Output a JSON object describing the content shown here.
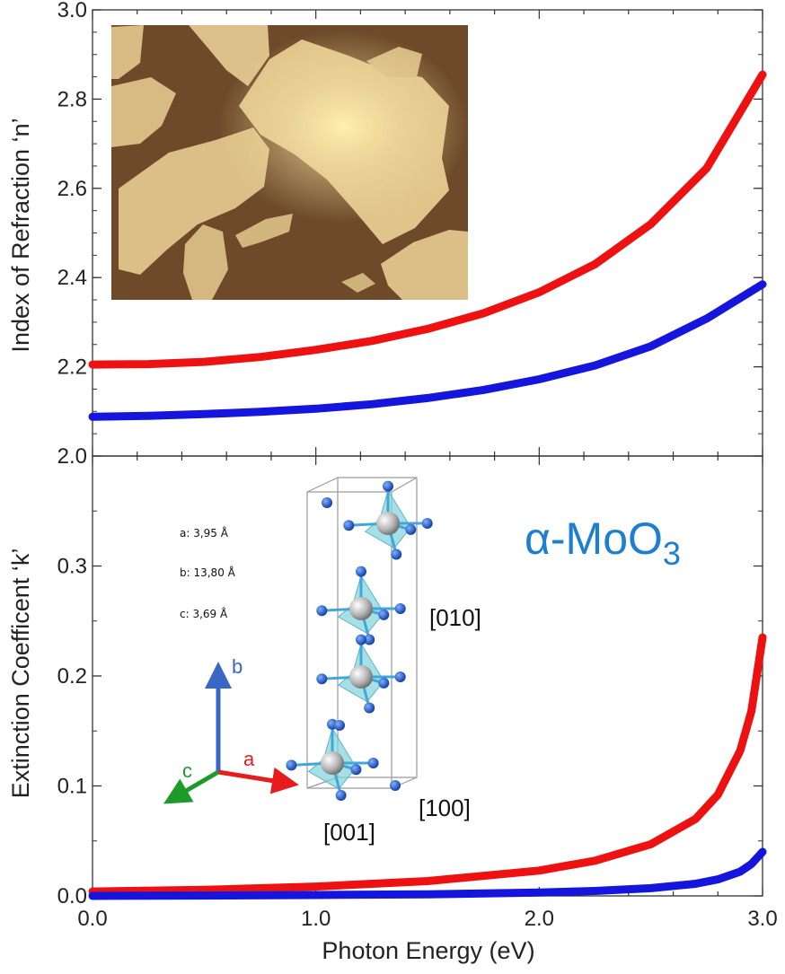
{
  "chart_data": [
    {
      "type": "line",
      "panel": "top",
      "xlabel": "",
      "ylabel": "Index of Refraction ‘n’",
      "xlim": [
        0.0,
        3.0
      ],
      "ylim": [
        2.0,
        3.0
      ],
      "yticks": [
        "2.0",
        "2.2",
        "2.4",
        "2.6",
        "2.8",
        "3.0"
      ],
      "grid": false,
      "series": [
        {
          "color": "#ee1111",
          "x": [
            0.0,
            0.25,
            0.5,
            0.75,
            1.0,
            1.25,
            1.5,
            1.75,
            2.0,
            2.25,
            2.5,
            2.75,
            3.0
          ],
          "y": [
            2.205,
            2.206,
            2.211,
            2.222,
            2.238,
            2.258,
            2.285,
            2.32,
            2.367,
            2.43,
            2.52,
            2.645,
            2.855
          ]
        },
        {
          "color": "#1515dd",
          "x": [
            0.0,
            0.25,
            0.5,
            0.75,
            1.0,
            1.25,
            1.5,
            1.75,
            2.0,
            2.25,
            2.5,
            2.75,
            3.0
          ],
          "y": [
            2.088,
            2.09,
            2.094,
            2.099,
            2.106,
            2.116,
            2.13,
            2.148,
            2.172,
            2.203,
            2.246,
            2.308,
            2.385
          ]
        }
      ]
    },
    {
      "type": "line",
      "panel": "bottom",
      "xlabel": "Photon Energy (eV)",
      "ylabel": "Extinction Coefficent ‘k’",
      "xlim": [
        0.0,
        3.0
      ],
      "ylim": [
        0.0,
        0.4
      ],
      "xticks": [
        "0.0",
        "1.0",
        "2.0",
        "3.0"
      ],
      "yticks": [
        "0.0",
        "0.1",
        "0.2",
        "0.3"
      ],
      "grid": false,
      "series": [
        {
          "color": "#ee1111",
          "x": [
            0.0,
            0.5,
            1.0,
            1.5,
            2.0,
            2.25,
            2.5,
            2.7,
            2.8,
            2.9,
            2.95,
            3.0
          ],
          "y": [
            0.004,
            0.0055,
            0.0085,
            0.0135,
            0.023,
            0.032,
            0.047,
            0.07,
            0.092,
            0.132,
            0.168,
            0.235
          ]
        },
        {
          "color": "#1515dd",
          "x": [
            0.0,
            0.5,
            1.0,
            1.5,
            2.0,
            2.25,
            2.5,
            2.7,
            2.8,
            2.9,
            2.95,
            3.0
          ],
          "y": [
            0.0,
            0.0003,
            0.0008,
            0.0015,
            0.003,
            0.0045,
            0.007,
            0.011,
            0.015,
            0.022,
            0.029,
            0.04
          ]
        }
      ]
    }
  ],
  "annotations": {
    "formula_main": "α-MoO",
    "formula_sub": "3",
    "lattice": [
      "a: 3,95 Å",
      "b: 13,80 Å",
      "c: 3,69 Å"
    ],
    "directions": {
      "d010": "[010]",
      "d100": "[100]",
      "d001": "[001]"
    },
    "axes": {
      "a": "a",
      "b": "b",
      "c": "c"
    }
  },
  "colors": {
    "red_series": "#ee1111",
    "blue_series": "#1515dd",
    "formula": "#1e7ed0",
    "octahedron": "#7fd3dc",
    "oxygen": "#1a55c8",
    "molybdenum": "#9a9a9a",
    "axis_a": "#e81c1c",
    "axis_b": "#3a66c4",
    "axis_c": "#1d9a2a",
    "micrograph_bg": "#6e4a2a",
    "micrograph_flake": "#e0c48a"
  },
  "inset_image": "AFM micrograph of MoO3 flakes"
}
